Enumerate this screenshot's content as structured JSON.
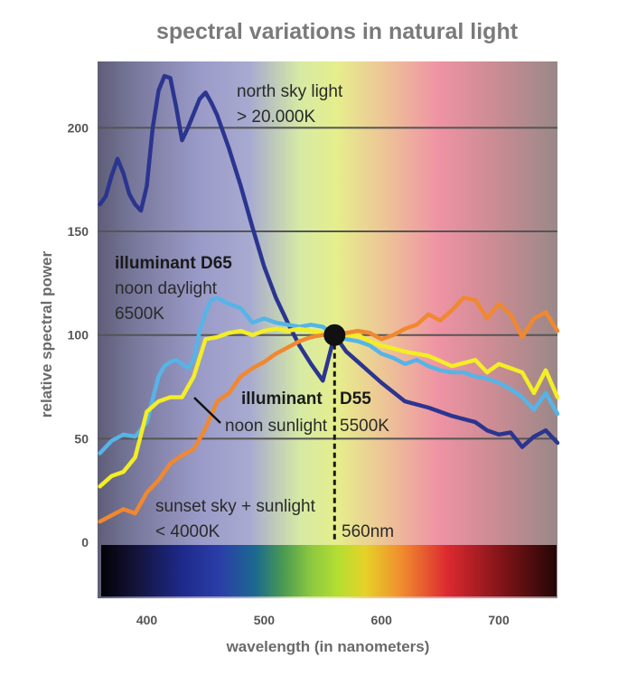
{
  "chart_data": {
    "type": "line",
    "title": "spectral variations in natural light",
    "xlabel": "wavelength (in nanometers)",
    "ylabel": "relative spectral power",
    "xlim": [
      358,
      750
    ],
    "ylim": [
      -27,
      232
    ],
    "x_ticks": [
      400,
      500,
      600,
      700
    ],
    "y_ticks": [
      0,
      50,
      100,
      150,
      200
    ],
    "grid": true,
    "series": [
      {
        "name": "north sky light",
        "color": "#2b3590",
        "x": [
          360,
          365,
          370,
          375,
          380,
          385,
          390,
          395,
          400,
          405,
          410,
          415,
          420,
          425,
          430,
          435,
          440,
          445,
          450,
          455,
          460,
          470,
          480,
          490,
          500,
          510,
          520,
          530,
          540,
          550,
          560,
          570,
          580,
          590,
          600,
          620,
          640,
          660,
          680,
          690,
          700,
          710,
          720,
          730,
          740,
          750
        ],
        "y": [
          163,
          167,
          177,
          185,
          178,
          168,
          163,
          160,
          172,
          200,
          218,
          225,
          224,
          210,
          194,
          200,
          207,
          214,
          217,
          212,
          206,
          190,
          172,
          152,
          133,
          118,
          106,
          95,
          86,
          78,
          100,
          92,
          87,
          82,
          77,
          68,
          65,
          61,
          58,
          54,
          52,
          53,
          46,
          51,
          54,
          48
        ]
      },
      {
        "name": "illuminant D65",
        "color": "#56b4e6",
        "x": [
          360,
          370,
          380,
          390,
          400,
          410,
          415,
          420,
          425,
          430,
          435,
          440,
          445,
          450,
          455,
          460,
          470,
          480,
          490,
          500,
          510,
          520,
          530,
          540,
          550,
          560,
          570,
          580,
          590,
          600,
          610,
          620,
          630,
          640,
          650,
          660,
          670,
          680,
          690,
          700,
          710,
          720,
          730,
          740,
          750
        ],
        "y": [
          43,
          49,
          52,
          51,
          58,
          80,
          85,
          87,
          88,
          86,
          84,
          88,
          102,
          111,
          117,
          118,
          115,
          113,
          106,
          108,
          106,
          105,
          104,
          105,
          104,
          100,
          98,
          97,
          95,
          91,
          89,
          86,
          88,
          85,
          83,
          82,
          82,
          80,
          79,
          77,
          74,
          70,
          64,
          72,
          62
        ]
      },
      {
        "name": "noon sunlight",
        "color": "#f3ee25",
        "x": [
          360,
          370,
          380,
          390,
          400,
          410,
          420,
          430,
          440,
          450,
          460,
          470,
          480,
          490,
          500,
          510,
          520,
          530,
          540,
          550,
          560,
          570,
          580,
          590,
          600,
          620,
          640,
          660,
          680,
          690,
          700,
          710,
          720,
          730,
          740,
          750
        ],
        "y": [
          27,
          32,
          34,
          41,
          63,
          68,
          70,
          70,
          80,
          98,
          99,
          101,
          102,
          100,
          102,
          103,
          102,
          103,
          102,
          101,
          101,
          100,
          100,
          97,
          95,
          92,
          90,
          85,
          88,
          82,
          86,
          84,
          82,
          72,
          83,
          70
        ]
      },
      {
        "name": "sunset sky + sunlight",
        "color": "#f08830",
        "x": [
          360,
          370,
          380,
          390,
          400,
          410,
          420,
          430,
          440,
          450,
          460,
          470,
          480,
          490,
          500,
          510,
          520,
          530,
          540,
          550,
          560,
          570,
          580,
          590,
          600,
          610,
          620,
          630,
          640,
          650,
          660,
          670,
          680,
          690,
          700,
          710,
          720,
          730,
          740,
          750
        ],
        "y": [
          10,
          13,
          16,
          14,
          24,
          30,
          38,
          42,
          45,
          55,
          68,
          72,
          80,
          84,
          87,
          91,
          94,
          97,
          99,
          100,
          100,
          101,
          102,
          101,
          98,
          100,
          103,
          105,
          110,
          107,
          112,
          118,
          117,
          108,
          115,
          110,
          99,
          108,
          111,
          102
        ]
      }
    ],
    "highlight_point": {
      "x": 560,
      "y": 100,
      "label": "560nm"
    },
    "annotations": {
      "north_sky_line1": "north sky light",
      "north_sky_line2": "> 20.000K",
      "d65_title": "illuminant D65",
      "d65_line1": "noon daylight",
      "d65_line2": "6500K",
      "d55_title": "illuminant",
      "d55_code": "D55",
      "d55_temp": "5500K",
      "noon_sunlight": "noon sunlight",
      "sunset_line1": "sunset sky + sunlight",
      "sunset_line2": "< 4000K"
    },
    "background_spectrum_colors": [
      "#5c5c7a",
      "#9c9cc8",
      "#e3eb8a",
      "#f0a4b4",
      "#a68c8c"
    ],
    "spectrum_bar_colors": [
      "#000000",
      "#28329c",
      "#a8d838",
      "#d63030",
      "#200a0a"
    ],
    "grid_color": "#555555"
  }
}
